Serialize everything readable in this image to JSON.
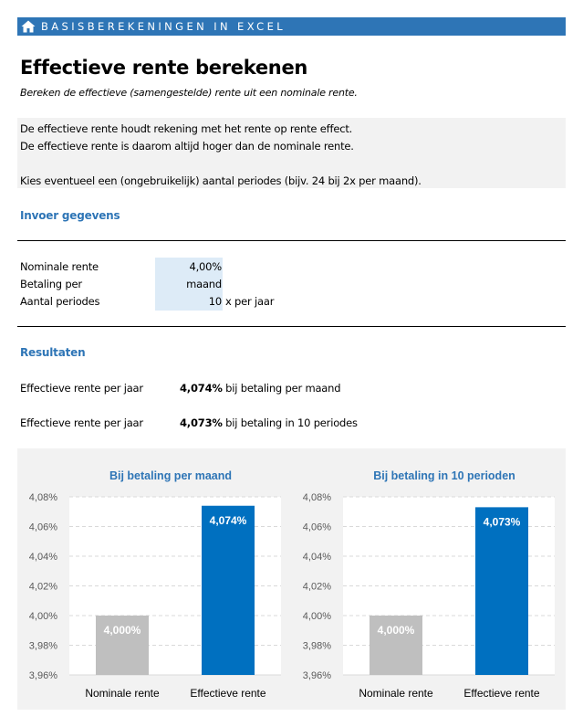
{
  "header": {
    "title": "BASISBEREKENINGEN IN EXCEL",
    "icon": "home-icon",
    "color": "#2e75b6"
  },
  "page": {
    "title": "Effectieve rente berekenen",
    "subtitle": "Bereken de effectieve (samengestelde) rente uit een nominale rente."
  },
  "info": {
    "line1": "De effectieve rente houdt rekening met het rente op rente effect.",
    "line2": "De effectieve rente is daarom altijd hoger dan de nominale rente.",
    "line3": "Kies eventueel een (ongebruikelijk) aantal periodes (bijv. 24 bij 2x per maand)."
  },
  "input": {
    "section_title": "Invoer gegevens",
    "rows": [
      {
        "label": "Nominale rente",
        "value": "4,00%",
        "suffix": ""
      },
      {
        "label": "Betaling per",
        "value": "maand",
        "suffix": ""
      },
      {
        "label": "Aantal periodes",
        "value": "10",
        "suffix": "x per jaar"
      }
    ]
  },
  "results": {
    "section_title": "Resultaten",
    "rows": [
      {
        "label": "Effectieve rente per jaar",
        "value": "4,074%",
        "text": "bij betaling per maand"
      },
      {
        "label": "Effectieve rente per jaar",
        "value": "4,073%",
        "text": "bij betaling in 10 periodes"
      }
    ]
  },
  "chart_data": [
    {
      "type": "bar",
      "title": "Bij betaling per maand",
      "categories": [
        "Nominale rente",
        "Effectieve rente"
      ],
      "values": [
        4.0,
        4.074
      ],
      "data_labels": [
        "4,000%",
        "4,074%"
      ],
      "colors": [
        "#bfbfbf",
        "#0070c0"
      ],
      "ylim": [
        3.96,
        4.08
      ],
      "yticks": [
        "3,96%",
        "3,98%",
        "4,00%",
        "4,02%",
        "4,04%",
        "4,06%",
        "4,08%"
      ],
      "grid": true,
      "xlabel": "",
      "ylabel": ""
    },
    {
      "type": "bar",
      "title": "Bij betaling in 10 perioden",
      "categories": [
        "Nominale rente",
        "Effectieve rente"
      ],
      "values": [
        4.0,
        4.073
      ],
      "data_labels": [
        "4,000%",
        "4,073%"
      ],
      "colors": [
        "#bfbfbf",
        "#0070c0"
      ],
      "ylim": [
        3.96,
        4.08
      ],
      "yticks": [
        "3,96%",
        "3,98%",
        "4,00%",
        "4,02%",
        "4,04%",
        "4,06%",
        "4,08%"
      ],
      "grid": true,
      "xlabel": "",
      "ylabel": ""
    }
  ]
}
